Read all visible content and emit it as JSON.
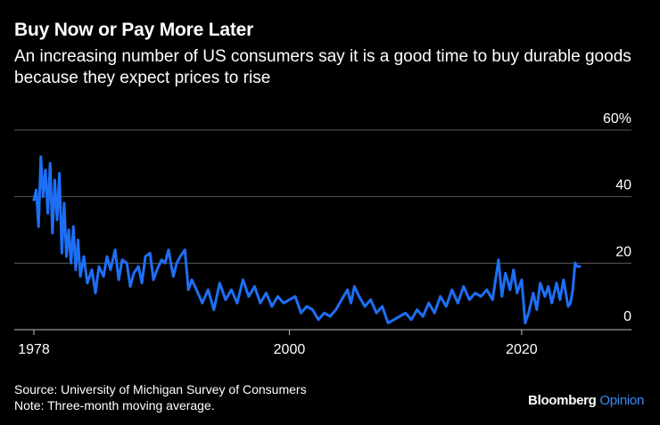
{
  "header": {
    "title": "Buy Now or Pay More Later",
    "subtitle": "An increasing number of US consumers say it is a good time to buy durable goods because they expect prices to rise"
  },
  "footer": {
    "source": "Source: University of Michigan Survey of Consumers",
    "note": "Note: Three-month moving average."
  },
  "brand": {
    "name": "Bloomberg",
    "suffix": "Opinion"
  },
  "colors": {
    "background": "#000000",
    "line": "#1e6ff6",
    "grid": "#5a5a5a",
    "text": "#ffffff",
    "brand_accent": "#3a8cf8"
  },
  "chart_data": {
    "type": "line",
    "title": "Buy Now or Pay More Later",
    "xlabel": "",
    "ylabel": "",
    "xlim": [
      1978,
      2025
    ],
    "ylim": [
      0,
      60
    ],
    "y_ticks": [
      0,
      20,
      40,
      60
    ],
    "y_tick_labels": [
      "0",
      "20",
      "40",
      "60%"
    ],
    "x_ticks": [
      1978,
      2000,
      2020
    ],
    "x_tick_labels": [
      "1978",
      "2000",
      "2020"
    ],
    "series": [
      {
        "name": "Good time to buy durable goods because prices will rise",
        "x": [
          1978.0,
          1978.2,
          1978.4,
          1978.6,
          1978.8,
          1979.0,
          1979.2,
          1979.4,
          1979.6,
          1979.8,
          1980.0,
          1980.2,
          1980.4,
          1980.6,
          1980.8,
          1981.0,
          1981.2,
          1981.4,
          1981.6,
          1981.8,
          1982.0,
          1982.3,
          1982.6,
          1983.0,
          1983.3,
          1983.6,
          1984.0,
          1984.3,
          1984.6,
          1985.0,
          1985.3,
          1985.6,
          1986.0,
          1986.3,
          1986.6,
          1987.0,
          1987.3,
          1987.6,
          1988.0,
          1988.3,
          1988.6,
          1989.0,
          1989.3,
          1989.6,
          1990.0,
          1990.3,
          1990.6,
          1991.0,
          1991.3,
          1991.6,
          1992.0,
          1992.5,
          1993.0,
          1993.5,
          1994.0,
          1994.5,
          1995.0,
          1995.5,
          1996.0,
          1996.5,
          1997.0,
          1997.5,
          1998.0,
          1998.5,
          1999.0,
          1999.5,
          2000.0,
          2000.5,
          2001.0,
          2001.5,
          2002.0,
          2002.5,
          2003.0,
          2003.5,
          2004.0,
          2004.5,
          2005.0,
          2005.3,
          2005.6,
          2006.0,
          2006.5,
          2007.0,
          2007.5,
          2008.0,
          2008.5,
          2009.0,
          2009.5,
          2010.0,
          2010.5,
          2011.0,
          2011.5,
          2012.0,
          2012.5,
          2013.0,
          2013.5,
          2014.0,
          2014.5,
          2015.0,
          2015.5,
          2016.0,
          2016.5,
          2017.0,
          2017.5,
          2018.0,
          2018.3,
          2018.6,
          2019.0,
          2019.3,
          2019.6,
          2020.0,
          2020.3,
          2020.6,
          2021.0,
          2021.3,
          2021.6,
          2022.0,
          2022.3,
          2022.6,
          2023.0,
          2023.3,
          2023.6,
          2024.0,
          2024.2,
          2024.4,
          2024.6,
          2024.8,
          2025.0
        ],
        "values": [
          39,
          42,
          31,
          52,
          40,
          48,
          35,
          50,
          29,
          45,
          33,
          47,
          23,
          38,
          22,
          30,
          20,
          31,
          18,
          27,
          16,
          22,
          14,
          18,
          11,
          19,
          16,
          22,
          18,
          24,
          15,
          21,
          20,
          13,
          17,
          19,
          14,
          22,
          23,
          15,
          18,
          21,
          20,
          24,
          16,
          20,
          22,
          24,
          12,
          15,
          12,
          8,
          12,
          6,
          14,
          9,
          12,
          8,
          15,
          10,
          13,
          8,
          11,
          7,
          10,
          8,
          9,
          10,
          5,
          7,
          6,
          3,
          5,
          4,
          6,
          9,
          12,
          8,
          13,
          10,
          7,
          9,
          5,
          7,
          2,
          3,
          4,
          5,
          3,
          6,
          4,
          8,
          5,
          10,
          7,
          12,
          8,
          13,
          9,
          11,
          10,
          12,
          9,
          21,
          10,
          17,
          12,
          18,
          11,
          15,
          2,
          5,
          11,
          6,
          14,
          10,
          13,
          8,
          14,
          9,
          15,
          7,
          8,
          12,
          20,
          19,
          19
        ]
      }
    ]
  }
}
